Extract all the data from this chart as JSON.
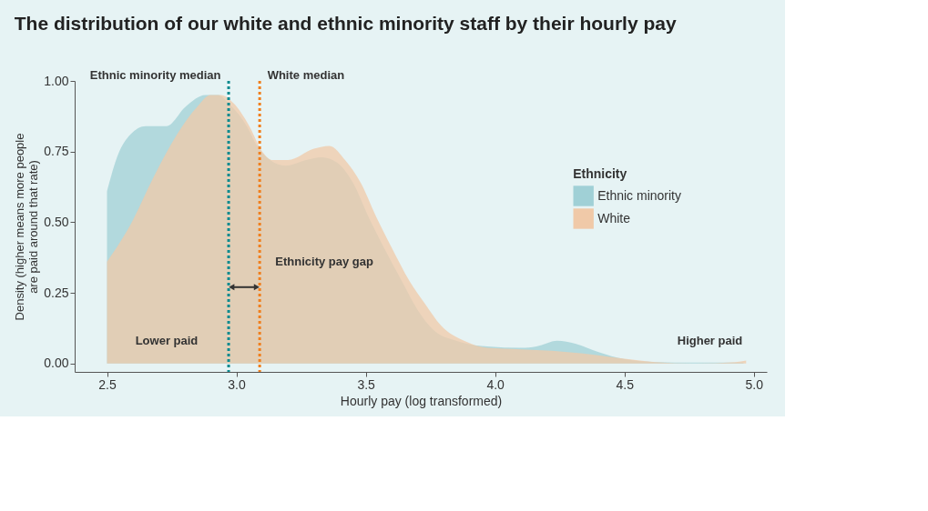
{
  "chart_data": {
    "type": "area",
    "title": "The distribution of our white and ethnic minority staff by their hourly pay",
    "xlabel": "Hourly pay (log transformed)",
    "ylabel": "Density (higher means more people are paid around that rate)",
    "legend_title": "Ethnicity",
    "legend": "right",
    "grid": false,
    "xlim": [
      2.375,
      5.05
    ],
    "xticks": [
      2.5,
      {
        "value": 3.0,
        "label": "3.0"
      },
      3.5,
      {
        "value": 4.0,
        "label": "4.0"
      },
      4.5,
      {
        "value": 5.0,
        "label": "5.0"
      }
    ],
    "ylim": [
      -0.03,
      1.0
    ],
    "yticks": [
      {
        "value": 0,
        "label": "0.00"
      },
      {
        "value": 0.25,
        "label": "0.25"
      },
      {
        "value": 0.5,
        "label": "0.50"
      },
      {
        "value": 0.75,
        "label": "0.75"
      },
      {
        "value": 1.0,
        "label": "1.00"
      }
    ],
    "series": [
      {
        "name": "Ethnic minority",
        "color": "#a0d0d6",
        "x": [
          2.5,
          2.543,
          2.59,
          2.65,
          2.73,
          2.805,
          2.88,
          2.93,
          2.97,
          3.04,
          3.08,
          3.13,
          3.19,
          3.27,
          3.33,
          3.39,
          3.45,
          3.51,
          3.57,
          3.64,
          3.7,
          3.76,
          3.85,
          3.97,
          4.1,
          4.16,
          4.24,
          4.31,
          4.4,
          4.5,
          4.62,
          4.77,
          4.96
        ],
        "values": [
          0.61,
          0.74,
          0.81,
          0.84,
          0.84,
          0.91,
          0.95,
          0.95,
          0.92,
          0.84,
          0.77,
          0.72,
          0.7,
          0.72,
          0.73,
          0.71,
          0.64,
          0.52,
          0.41,
          0.29,
          0.19,
          0.12,
          0.08,
          0.06,
          0.055,
          0.06,
          0.08,
          0.07,
          0.04,
          0.015,
          0.005,
          0.003,
          0.003
        ]
      },
      {
        "name": "White",
        "color": "#f0c9a8",
        "x": [
          2.5,
          2.59,
          2.68,
          2.77,
          2.85,
          2.9,
          2.94,
          2.99,
          3.05,
          3.1,
          3.14,
          3.2,
          3.3,
          3.36,
          3.42,
          3.48,
          3.54,
          3.6,
          3.67,
          3.73,
          3.79,
          3.88,
          3.97,
          4.1,
          4.22,
          4.34,
          4.47,
          4.62,
          4.77,
          4.93,
          4.97
        ],
        "values": [
          0.36,
          0.49,
          0.66,
          0.81,
          0.91,
          0.95,
          0.95,
          0.92,
          0.84,
          0.75,
          0.72,
          0.72,
          0.76,
          0.77,
          0.72,
          0.64,
          0.52,
          0.41,
          0.29,
          0.21,
          0.135,
          0.08,
          0.055,
          0.05,
          0.045,
          0.035,
          0.02,
          0.005,
          0.0,
          0.005,
          0.01
        ]
      }
    ],
    "ref_lines": [
      {
        "axis": "x",
        "value": 2.97,
        "label": "Ethnic minority median",
        "color": "#0a8a8f",
        "line_style": "dotted"
      },
      {
        "axis": "x",
        "value": 3.09,
        "label": "White median",
        "color": "#f07f1d",
        "line_style": "dotted"
      }
    ],
    "annotations": [
      "Ethnicity pay gap",
      "Lower paid",
      "Higher paid"
    ]
  }
}
